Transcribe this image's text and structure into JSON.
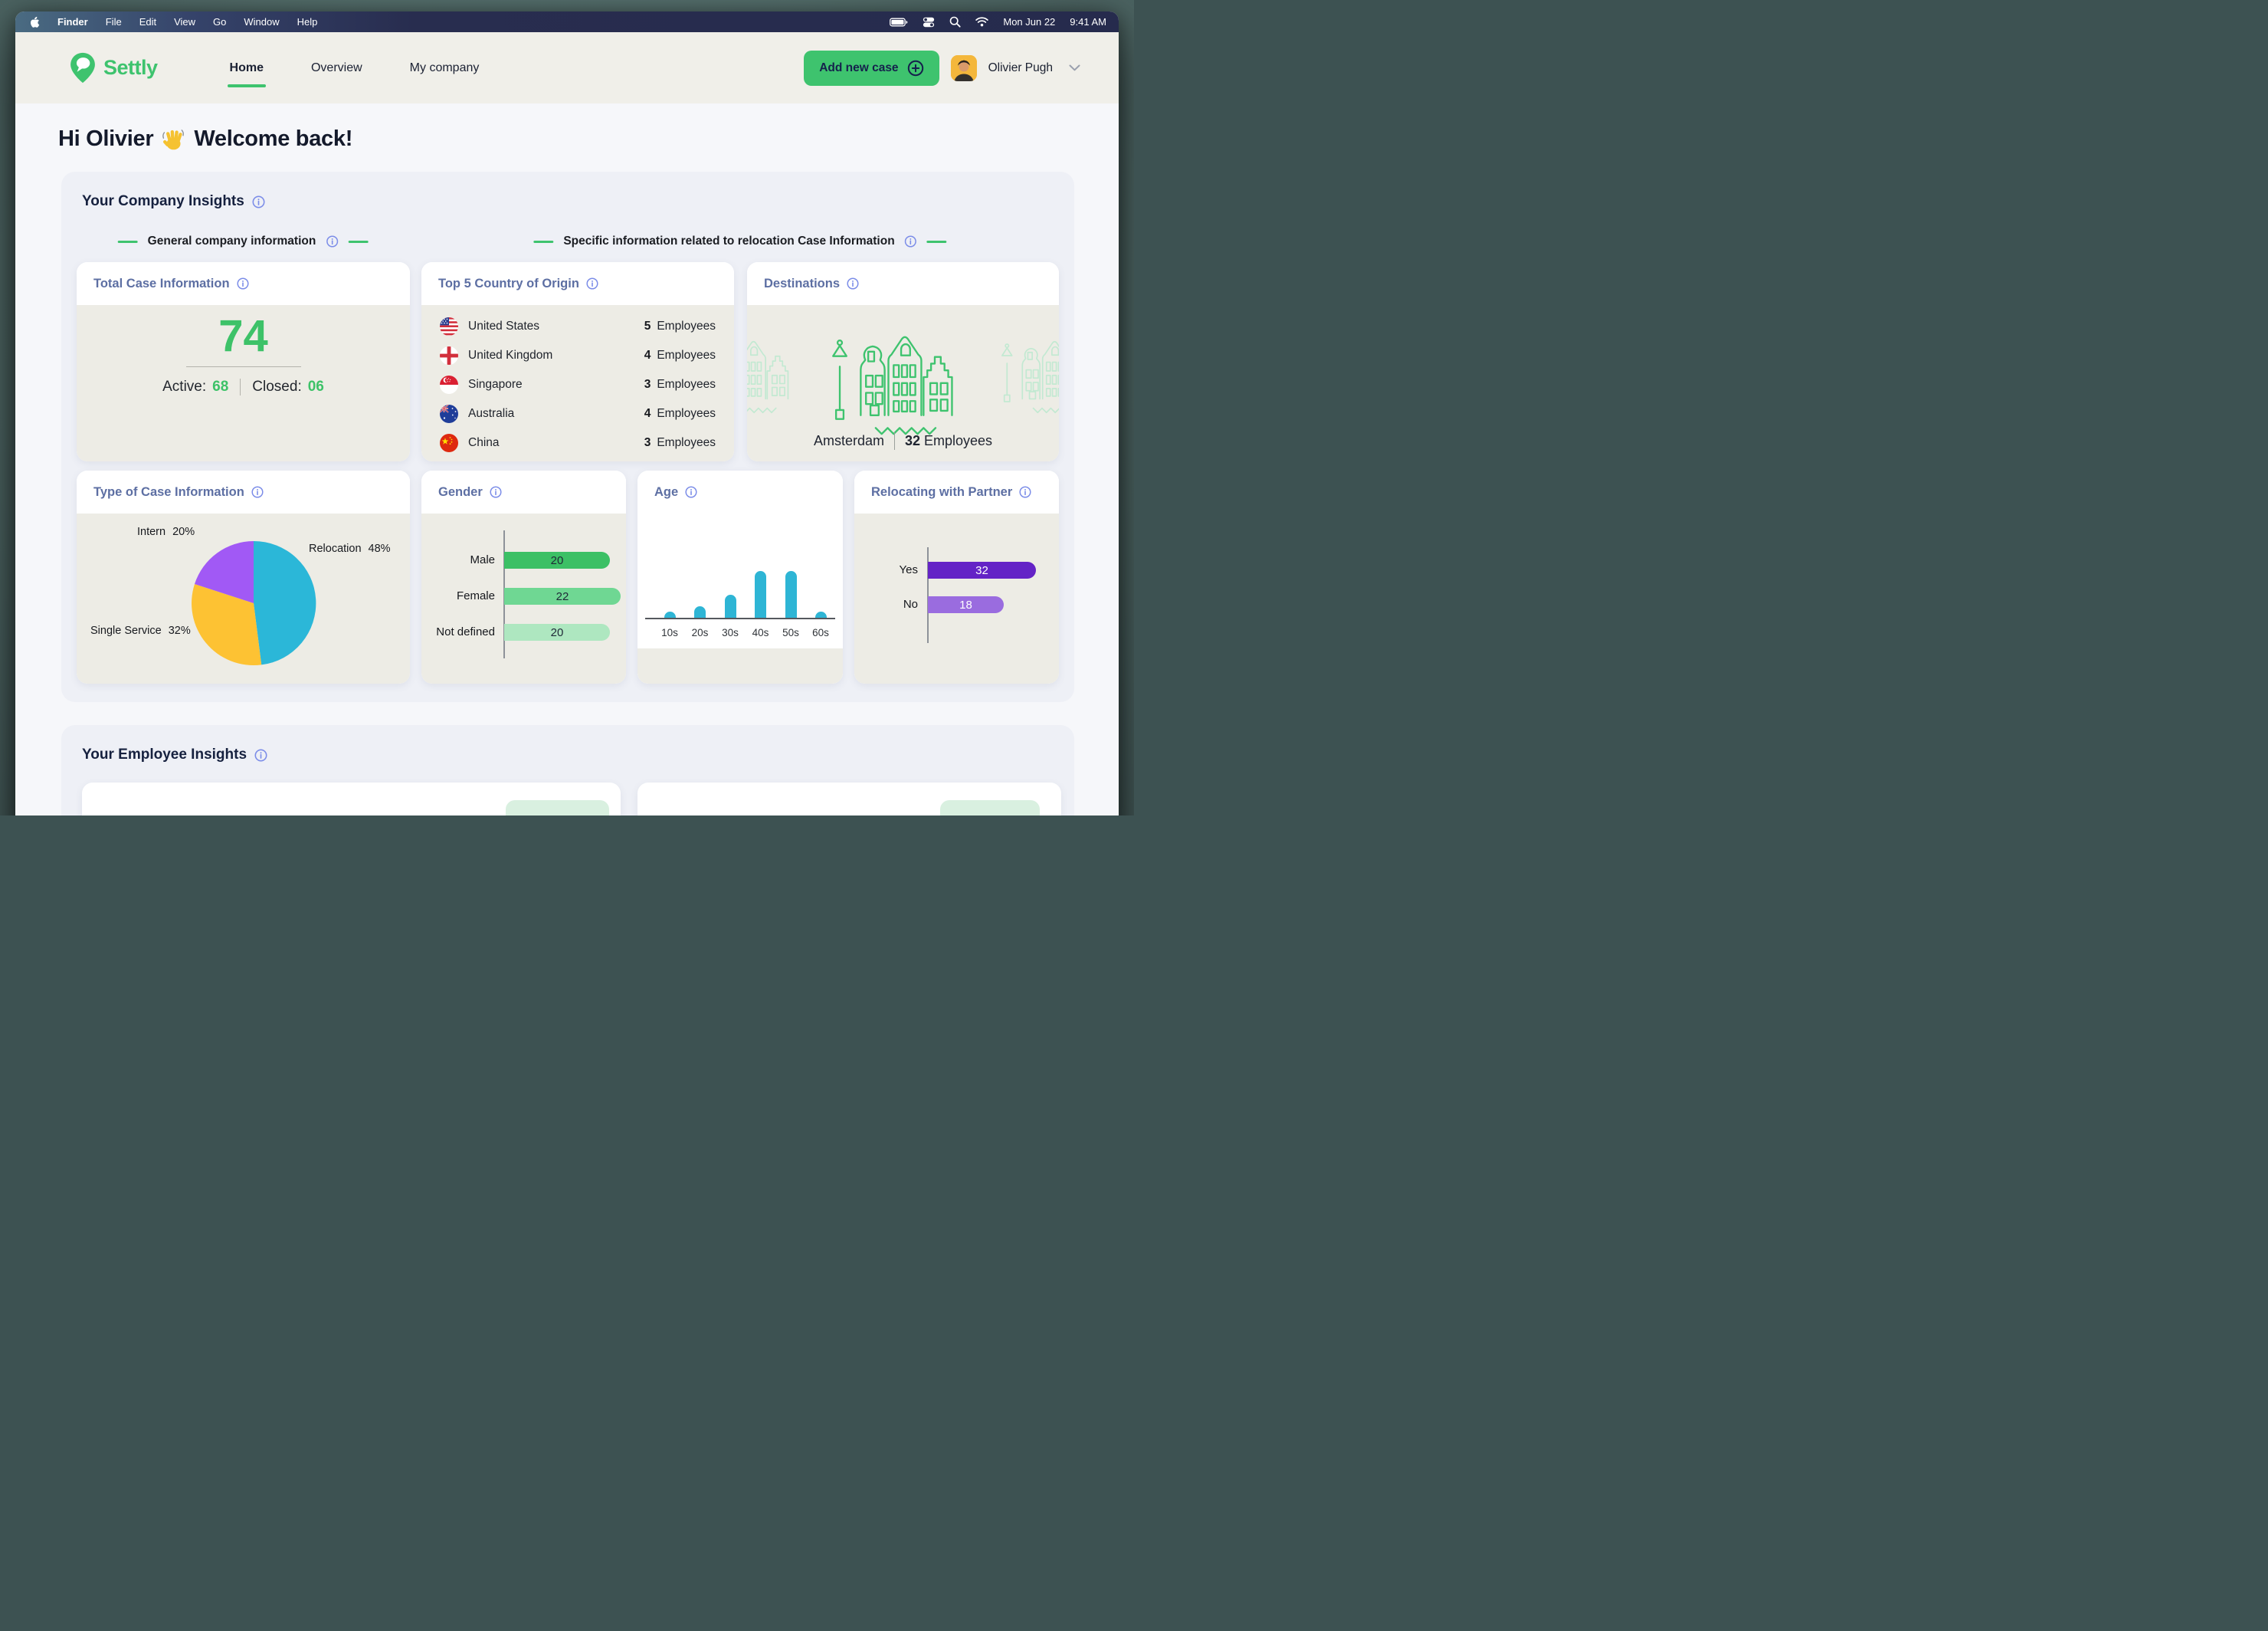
{
  "menu_bar": {
    "items": [
      "Finder",
      "File",
      "Edit",
      "View",
      "Go",
      "Window",
      "Help"
    ],
    "date": "Mon Jun 22",
    "time": "9:41 AM"
  },
  "header": {
    "brand": "Settly",
    "nav": [
      "Home",
      "Overview",
      "My company"
    ],
    "active_nav": "Home",
    "add_case_label": "Add new case",
    "user_name": "Olivier Pugh"
  },
  "greeting": {
    "hi": "Hi Olivier",
    "back": "Welcome back!"
  },
  "company": {
    "title": "Your Company Insights",
    "group_general": "General company information",
    "group_specific": "Specific information related to relocation Case Information",
    "total_case": {
      "title": "Total Case Information",
      "total": "74",
      "active_label": "Active:",
      "active_value": "68",
      "closed_label": "Closed:",
      "closed_value": "06"
    },
    "top5": {
      "title": "Top 5 Country of Origin",
      "unit": "Employees",
      "rows": [
        {
          "country": "United States",
          "count": "5"
        },
        {
          "country": "United Kingdom",
          "count": "4"
        },
        {
          "country": "Singapore",
          "count": "3"
        },
        {
          "country": "Australia",
          "count": "4"
        },
        {
          "country": "China",
          "count": "3"
        }
      ]
    },
    "destinations": {
      "title": "Destinations",
      "city": "Amsterdam",
      "count": "32",
      "unit": "Employees"
    },
    "type_title": "Type of Case Information",
    "gender_title": "Gender",
    "age_title": "Age",
    "partner_title": "Relocating with Partner"
  },
  "employee": {
    "title": "Your Employee Insights"
  },
  "colors": {
    "accent_green": "#3ec36e",
    "big_number_green": "#3dc268",
    "card_title_slate": "#5d6fa3",
    "info_icon_blue": "#7c8de8",
    "menu_bar_navy": "#262b4d",
    "header_beige": "#f0efe9",
    "card_body_beige": "#edece5"
  },
  "chart_data": [
    {
      "type": "pie",
      "title": "Type of Case Information",
      "labels": [
        "Relocation",
        "Single Service",
        "Intern"
      ],
      "values": [
        48,
        32,
        20
      ],
      "unit": "%",
      "colors": [
        "#2bb7d8",
        "#fdc233",
        "#a159f5"
      ],
      "start": "12 o'clock, clockwise"
    },
    {
      "type": "bar",
      "title": "Gender",
      "orientation": "horizontal",
      "categories": [
        "Male",
        "Female",
        "Not defined"
      ],
      "values": [
        20,
        22,
        20
      ],
      "colors": [
        "#3cc065",
        "#6fd793",
        "#aee7c0"
      ],
      "value_labels_inside": true
    },
    {
      "type": "bar",
      "title": "Age",
      "orientation": "vertical",
      "categories": [
        "10s",
        "20s",
        "30s",
        "40s",
        "50s",
        "60s"
      ],
      "values": [
        1,
        2,
        4,
        8,
        8,
        1
      ],
      "color": "#2eb5d5",
      "note": "relative heights estimated; no numeric labels shown"
    },
    {
      "type": "bar",
      "title": "Relocating with Partner",
      "orientation": "horizontal",
      "categories": [
        "Yes",
        "No"
      ],
      "values": [
        32,
        18
      ],
      "colors": [
        "#6423c6",
        "#9a6cdf"
      ],
      "value_labels_inside": true
    }
  ]
}
